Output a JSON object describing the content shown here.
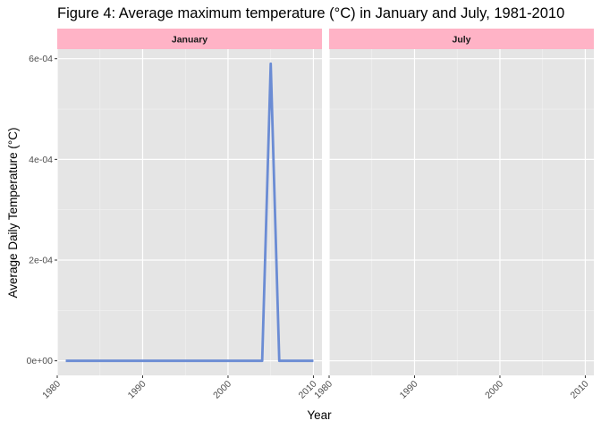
{
  "chart_data": {
    "type": "line",
    "title": "Figure 4: Average maximum temperature (°C) in January and July, 1981-2010",
    "xlabel": "Year",
    "ylabel": "Average Daily Temperature (°C)",
    "xlim": [
      1980,
      2011
    ],
    "ylim": [
      -2.9e-05,
      0.000619
    ],
    "x_ticks": [
      1980,
      1990,
      2000,
      2010
    ],
    "x_tick_labels": [
      "1980",
      "1990",
      "2000",
      "2010"
    ],
    "y_ticks": [
      0,
      0.0002,
      0.0004,
      0.0006
    ],
    "y_tick_labels": [
      "0e+00",
      "2e-04",
      "4e-04",
      "6e-04"
    ],
    "grid": true,
    "line_color": "#6b8cd4",
    "strip_color": "#ffb3c6",
    "panel_bg": "#e5e5e5",
    "panels": [
      {
        "label": "January",
        "series": [
          {
            "x": [
              1981,
              1982,
              1983,
              1984,
              1985,
              1986,
              1987,
              1988,
              1989,
              1990,
              1991,
              1992,
              1993,
              1994,
              1995,
              1996,
              1997,
              1998,
              1999,
              2000,
              2001,
              2002,
              2003,
              2004,
              2005,
              2006,
              2007,
              2008,
              2009,
              2010
            ],
            "y": [
              0,
              0,
              0,
              0,
              0,
              0,
              0,
              0,
              0,
              0,
              0,
              0,
              0,
              0,
              0,
              0,
              0,
              0,
              0,
              0,
              0,
              0,
              0,
              0,
              0.00059,
              0,
              0,
              0,
              0,
              0
            ]
          }
        ]
      },
      {
        "label": "July",
        "series": []
      }
    ]
  }
}
